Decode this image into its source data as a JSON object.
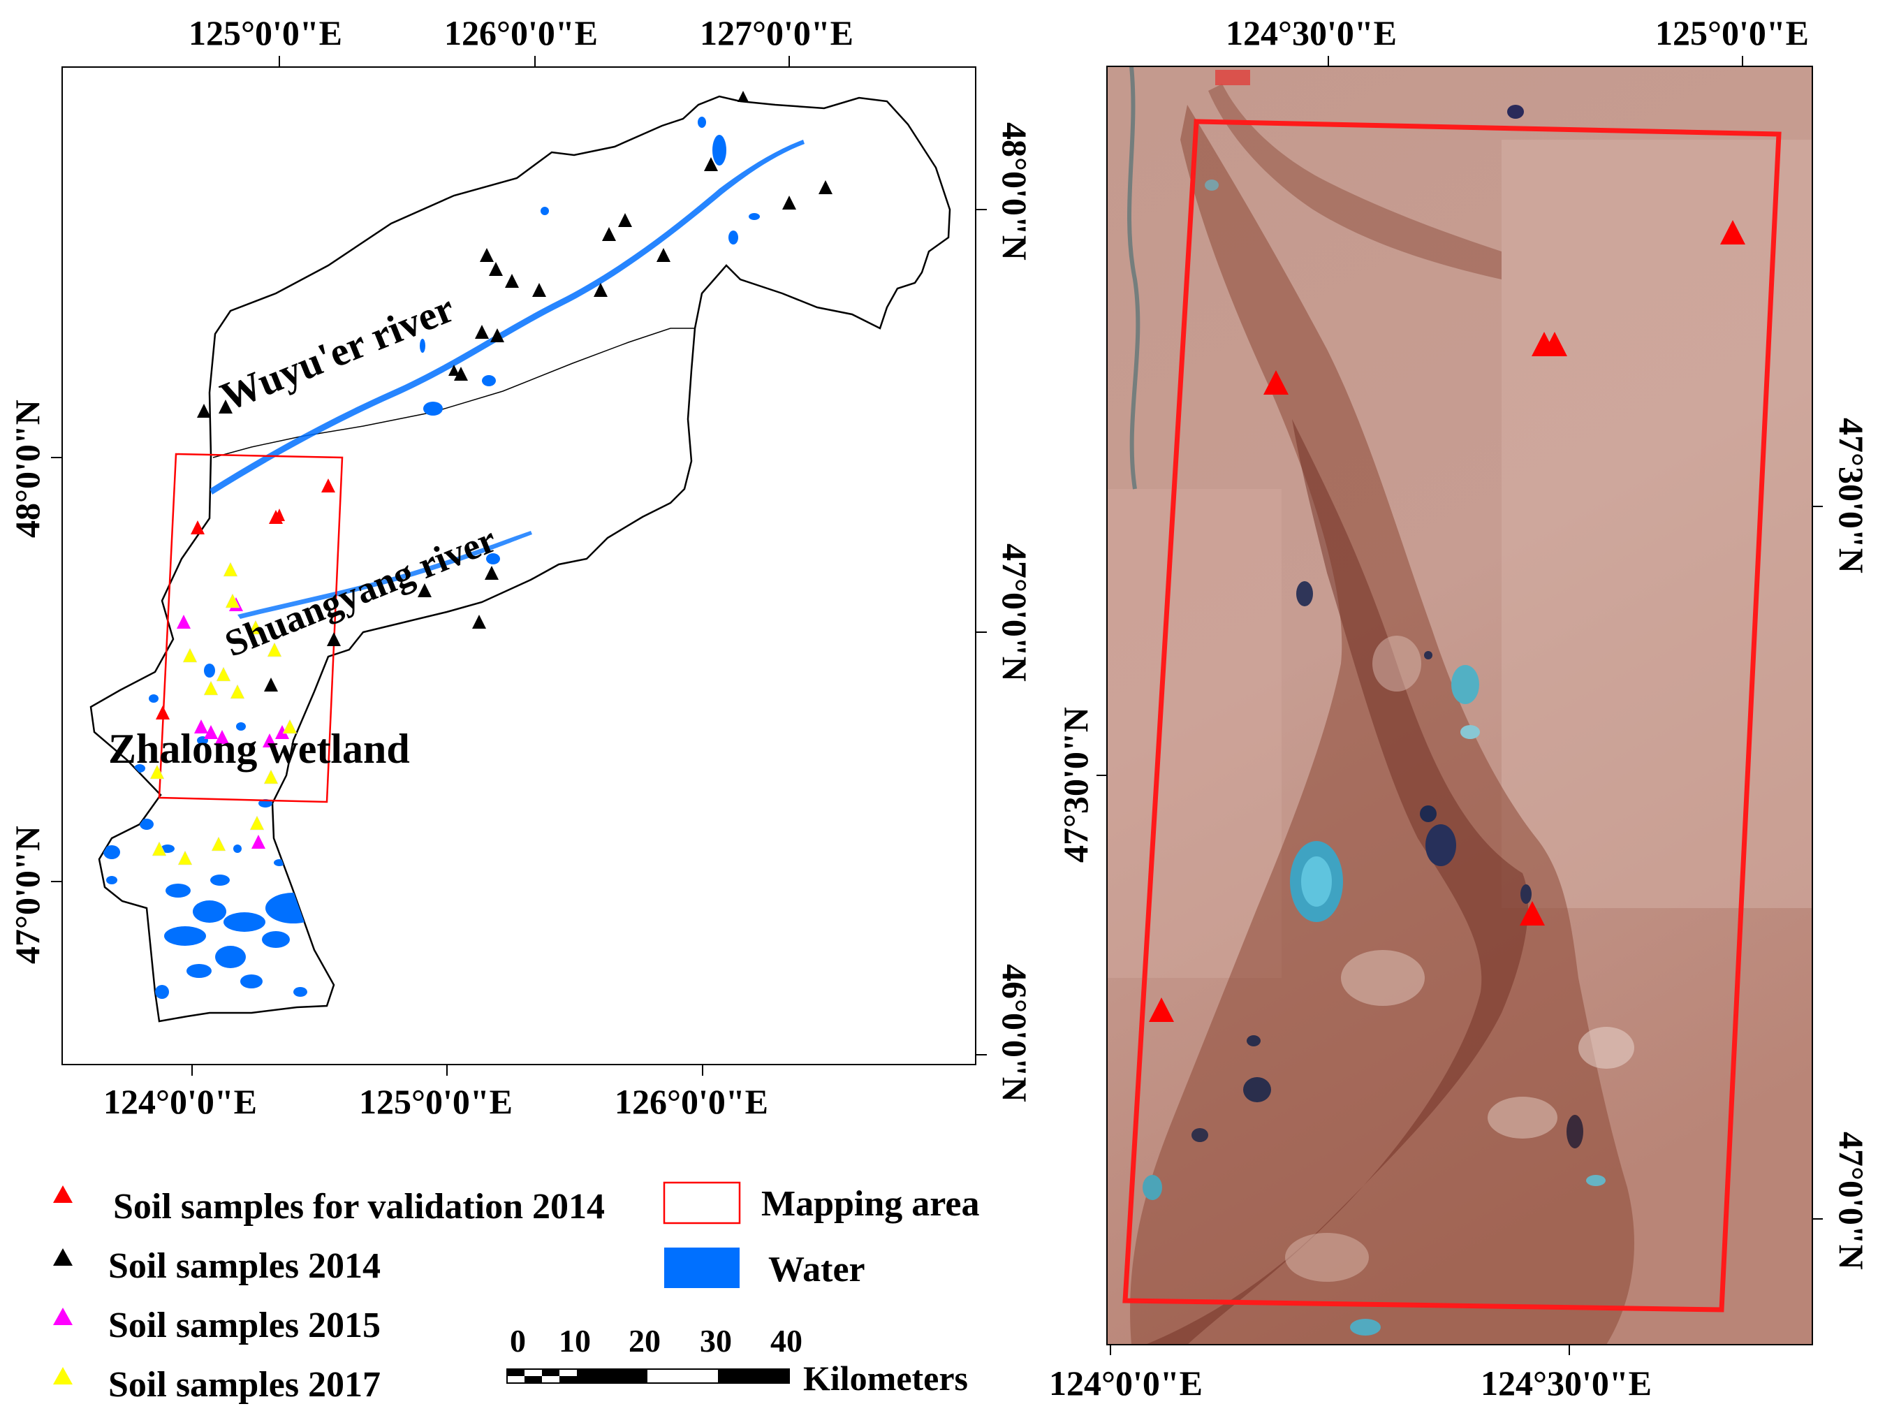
{
  "left_map": {
    "top_lon_labels": [
      "125°0'0\"E",
      "126°0'0\"E",
      "127°0'0\"E"
    ],
    "bottom_lon_labels": [
      "124°0'0\"E",
      "125°0'0\"E",
      "126°0'0\"E"
    ],
    "left_lat_labels": [
      "48°0'0\"N",
      "47°0'0\"N"
    ],
    "right_lat_labels": [
      "48°0'0\"N",
      "47°0'0\"N",
      "46°0'0\"N"
    ],
    "place_labels": {
      "wuyuer": "Wuyu'er   river",
      "shuangyang": "Shuangyang river",
      "zhalong": "Zhalong wetland"
    }
  },
  "right_map": {
    "top_lon_labels": [
      "124°30'0\"E",
      "125°0'0\"E"
    ],
    "bottom_lon_labels": [
      "124°0'0\"E",
      "124°30'0\"E"
    ],
    "left_lat_labels": [
      "47°30'0\"N"
    ],
    "right_lat_labels": [
      "47°30'0\"N",
      "47°0'0\"N"
    ]
  },
  "legend": {
    "items": [
      {
        "label": "Soil samples for validation 2014",
        "color": "#ff0000",
        "symbol": "triangle"
      },
      {
        "label": "Soil samples 2014",
        "color": "#000000",
        "symbol": "triangle"
      },
      {
        "label": "Soil samples 2015",
        "color": "#ff00ff",
        "symbol": "triangle"
      },
      {
        "label": "Soil samples 2017",
        "color": "#ffff00",
        "symbol": "triangle"
      },
      {
        "label": "Mapping area",
        "color": "#ff0000",
        "symbol": "hollow-rect"
      },
      {
        "label": "Water",
        "color": "#0070ff",
        "symbol": "filled-rect"
      }
    ]
  },
  "scale_bar": {
    "ticks": [
      "0",
      "10",
      "20",
      "30",
      "40"
    ],
    "unit": "Kilometers"
  },
  "colors": {
    "water": "#0070ff",
    "validation_2014": "#ff0000",
    "samples_2014": "#000000",
    "samples_2015": "#ff00ff",
    "samples_2017": "#ffff00",
    "mapping_area": "#ff0000",
    "imagery_base": "#c4988f"
  }
}
